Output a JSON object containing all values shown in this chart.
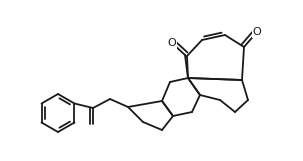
{
  "bg_color": "#ffffff",
  "line_color": "#1a1a1a",
  "lw": 1.3,
  "fig_width": 3.03,
  "fig_height": 1.61,
  "dpi": 100
}
